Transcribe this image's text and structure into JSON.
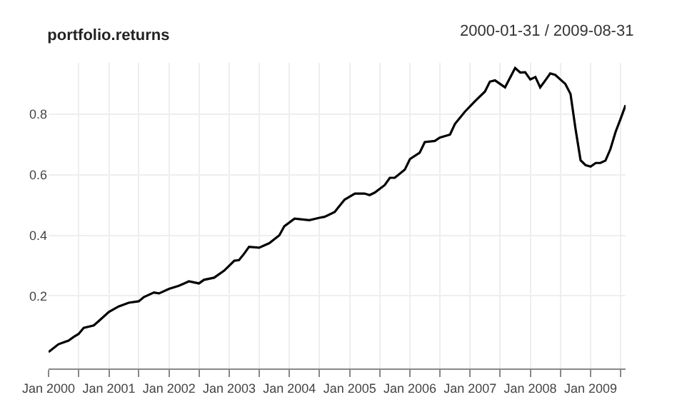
{
  "chart_data": {
    "type": "line",
    "title": "portfolio.returns",
    "annotations": [
      "2000-01-31 / 2009-08-31"
    ],
    "x": [
      "2000-01",
      "2000-03",
      "2000-04",
      "2000-05",
      "2000-06",
      "2000-07",
      "2000-08",
      "2000-10",
      "2000-11",
      "2001-01",
      "2001-03",
      "2001-05",
      "2001-07",
      "2001-08",
      "2001-10",
      "2001-11",
      "2002-01",
      "2002-03",
      "2002-05",
      "2002-07",
      "2002-08",
      "2002-10",
      "2002-12",
      "2003-02",
      "2003-03",
      "2003-04",
      "2003-05",
      "2003-07",
      "2003-09",
      "2003-11",
      "2003-12",
      "2004-02",
      "2004-05",
      "2004-07",
      "2004-08",
      "2004-10",
      "2004-11",
      "2004-12",
      "2005-02",
      "2005-04",
      "2005-05",
      "2005-06",
      "2005-08",
      "2005-09",
      "2005-10",
      "2005-12",
      "2006-01",
      "2006-03",
      "2006-04",
      "2006-06",
      "2006-07",
      "2006-09",
      "2006-10",
      "2006-12",
      "2007-02",
      "2007-04",
      "2007-05",
      "2007-06",
      "2007-08",
      "2007-10",
      "2007-11",
      "2007-12",
      "2008-01",
      "2008-02",
      "2008-03",
      "2008-04",
      "2008-05",
      "2008-06",
      "2008-08",
      "2008-09",
      "2008-10",
      "2008-11",
      "2008-12",
      "2009-01",
      "2009-02",
      "2009-03",
      "2009-04",
      "2009-05",
      "2009-06",
      "2009-07",
      "2009-08"
    ],
    "series": [
      {
        "color": "#000000",
        "values": [
          0.014,
          0.04,
          0.046,
          0.052,
          0.064,
          0.074,
          0.094,
          0.102,
          0.117,
          0.147,
          0.165,
          0.177,
          0.182,
          0.196,
          0.211,
          0.208,
          0.223,
          0.233,
          0.248,
          0.241,
          0.253,
          0.26,
          0.283,
          0.316,
          0.318,
          0.339,
          0.362,
          0.359,
          0.374,
          0.4,
          0.43,
          0.455,
          0.45,
          0.458,
          0.461,
          0.477,
          0.498,
          0.518,
          0.538,
          0.538,
          0.533,
          0.541,
          0.566,
          0.59,
          0.59,
          0.617,
          0.652,
          0.673,
          0.708,
          0.712,
          0.723,
          0.733,
          0.768,
          0.809,
          0.844,
          0.875,
          0.908,
          0.912,
          0.889,
          0.953,
          0.938,
          0.939,
          0.915,
          0.923,
          0.889,
          0.912,
          0.935,
          0.93,
          0.9,
          0.867,
          0.753,
          0.648,
          0.632,
          0.627,
          0.639,
          0.639,
          0.647,
          0.685,
          0.741,
          0.784,
          0.83
        ]
      }
    ],
    "xlim": [
      "2000-01",
      "2009-08"
    ],
    "xticks": [
      {
        "value": "2000-01",
        "label": "Jan 2000"
      },
      {
        "value": "2000-07",
        "label": null
      },
      {
        "value": "2001-01",
        "label": "Jan 2001"
      },
      {
        "value": "2001-07",
        "label": null
      },
      {
        "value": "2002-01",
        "label": "Jan 2002"
      },
      {
        "value": "2002-07",
        "label": null
      },
      {
        "value": "2003-01",
        "label": "Jan 2003"
      },
      {
        "value": "2003-07",
        "label": null
      },
      {
        "value": "2004-01",
        "label": "Jan 2004"
      },
      {
        "value": "2004-07",
        "label": null
      },
      {
        "value": "2005-01",
        "label": "Jan 2005"
      },
      {
        "value": "2005-07",
        "label": null
      },
      {
        "value": "2006-01",
        "label": "Jan 2006"
      },
      {
        "value": "2006-07",
        "label": null
      },
      {
        "value": "2007-01",
        "label": "Jan 2007"
      },
      {
        "value": "2007-07",
        "label": null
      },
      {
        "value": "2008-01",
        "label": "Jan 2008"
      },
      {
        "value": "2008-07",
        "label": null
      },
      {
        "value": "2009-01",
        "label": "Jan 2009"
      },
      {
        "value": "2009-07",
        "label": null
      }
    ],
    "ylim": [
      -0.04,
      0.97
    ],
    "yticks": [
      0.2,
      0.4,
      0.6,
      0.8
    ],
    "grid": true,
    "marker": "none",
    "line_style": "solid"
  }
}
